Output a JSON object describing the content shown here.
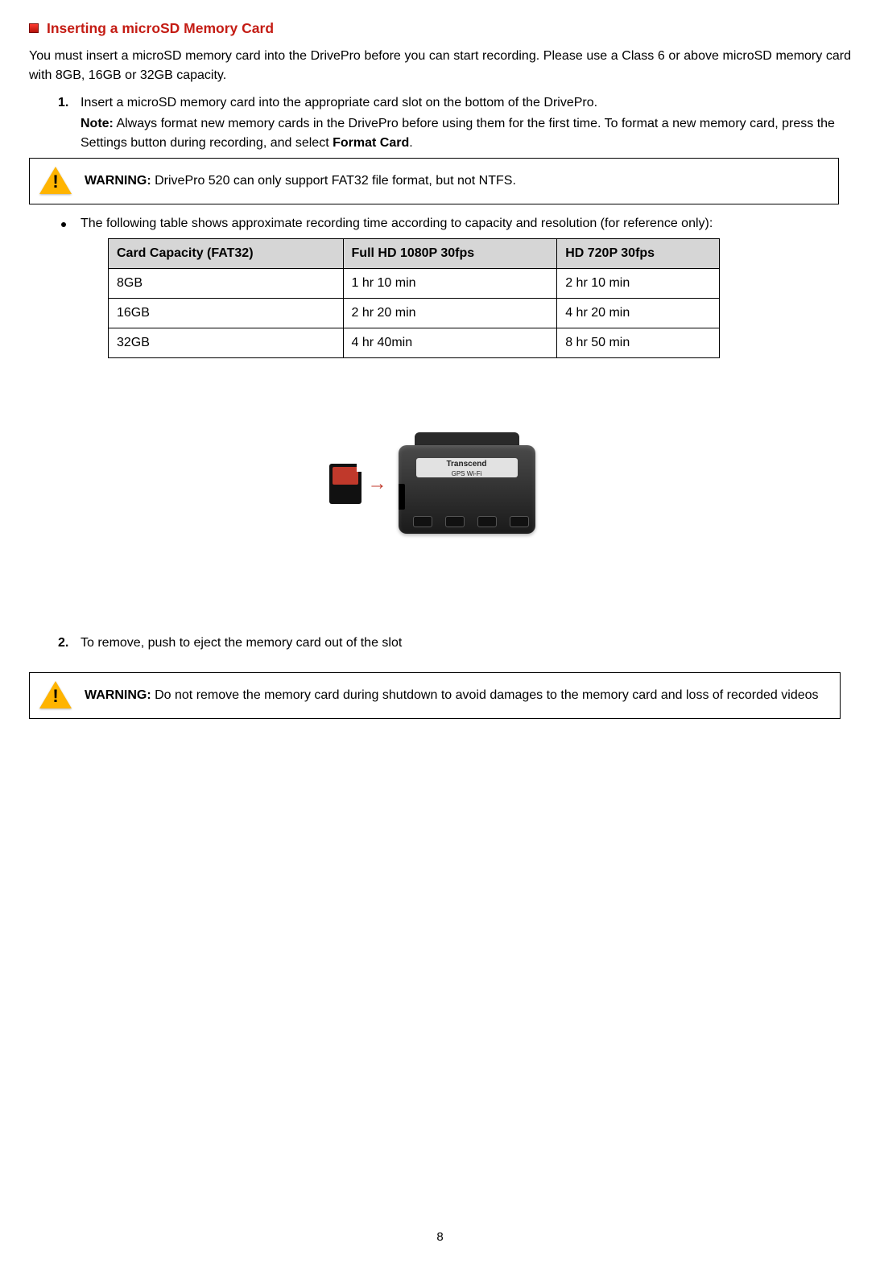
{
  "header": {
    "title": "Inserting a microSD Memory Card"
  },
  "intro": "You must insert a microSD memory card into the DrivePro before you can start recording. Please use a Class 6 or above microSD memory card with 8GB, 16GB or 32GB capacity.",
  "step1": {
    "num": "1.",
    "text": "Insert a microSD memory card into the appropriate card slot on the bottom of the DrivePro.",
    "note_label": "Note:",
    "note_body_a": " Always format new memory cards in the DrivePro before using them for the first time. To format a new memory card, press the Settings button during recording, and select ",
    "note_bold": "Format Card",
    "note_body_b": "."
  },
  "warning1": {
    "label": "WARNING:",
    "text": " DrivePro 520 can only support FAT32 file format, but not NTFS."
  },
  "bullet": {
    "text": "The following table shows approximate recording time according to capacity and resolution (for reference only):"
  },
  "table": {
    "headers": [
      "Card Capacity (FAT32)",
      "Full HD 1080P 30fps",
      "HD 720P 30fps"
    ],
    "rows": [
      [
        "8GB",
        "1 hr 10 min",
        "2 hr 10 min"
      ],
      [
        "16GB",
        "2 hr 20 min",
        "4 hr 20 min"
      ],
      [
        "32GB",
        "4 hr 40min",
        "8 hr 50 min"
      ]
    ]
  },
  "device_label": {
    "brand": "Transcend",
    "sub": "GPS  Wi-Fi"
  },
  "step2": {
    "num": "2.",
    "text": "To remove, push to eject the memory card out of the slot"
  },
  "warning2": {
    "label": "WARNING:",
    "text": " Do not remove the memory card during shutdown to avoid damages to the memory card and loss of recorded videos"
  },
  "page_number": "8",
  "colors": {
    "heading_red": "#c41c14",
    "table_header_bg": "#d6d6d6",
    "warning_yellow": "#ffb400",
    "arrow_red": "#c0392b"
  }
}
